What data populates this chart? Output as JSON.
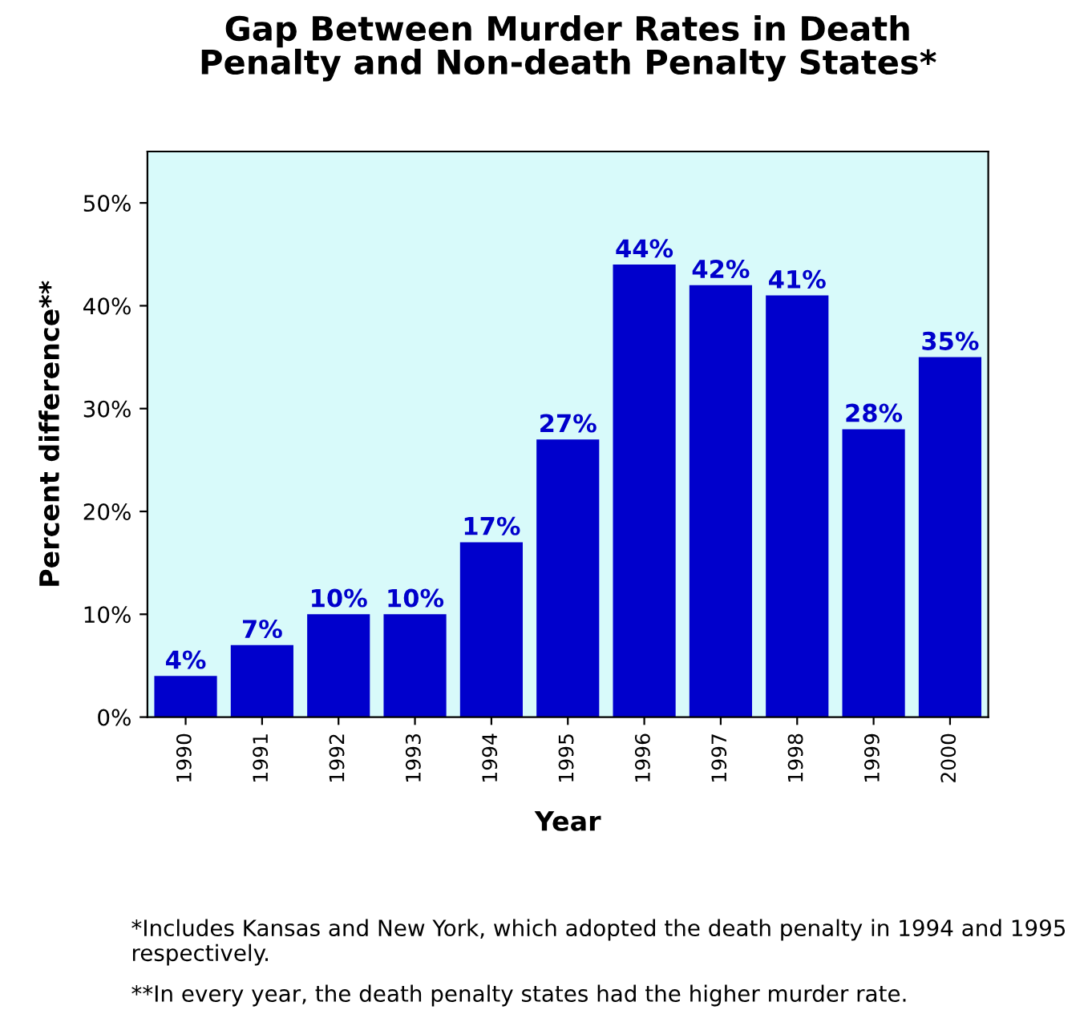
{
  "chart_data": {
    "type": "bar",
    "title": "Gap Between Murder Rates in Death\nPenalty and Non-death Penalty States*",
    "xlabel": "Year",
    "ylabel": "Percent difference**",
    "categories": [
      "1990",
      "1991",
      "1992",
      "1993",
      "1994",
      "1995",
      "1996",
      "1997",
      "1998",
      "1999",
      "2000"
    ],
    "values": [
      4,
      7,
      10,
      10,
      17,
      27,
      44,
      42,
      41,
      28,
      35
    ],
    "value_labels": [
      "4%",
      "7%",
      "10%",
      "10%",
      "17%",
      "27%",
      "44%",
      "42%",
      "41%",
      "28%",
      "35%"
    ],
    "color": "#0000cc",
    "ylim": [
      0,
      55
    ],
    "yticks": [
      {
        "value": 0,
        "label": "0%"
      },
      {
        "value": 10,
        "label": "10%"
      },
      {
        "value": 20,
        "label": "20%"
      },
      {
        "value": 30,
        "label": "30%"
      },
      {
        "value": 40,
        "label": "40%"
      },
      {
        "value": 50,
        "label": "50%"
      }
    ],
    "grid": false,
    "legend": false,
    "annotations": [
      "*Includes Kansas and New York, which adopted the death penalty in 1994 and 1995 respectively.",
      "**In every year, the death penalty states had the higher murder rate."
    ]
  }
}
